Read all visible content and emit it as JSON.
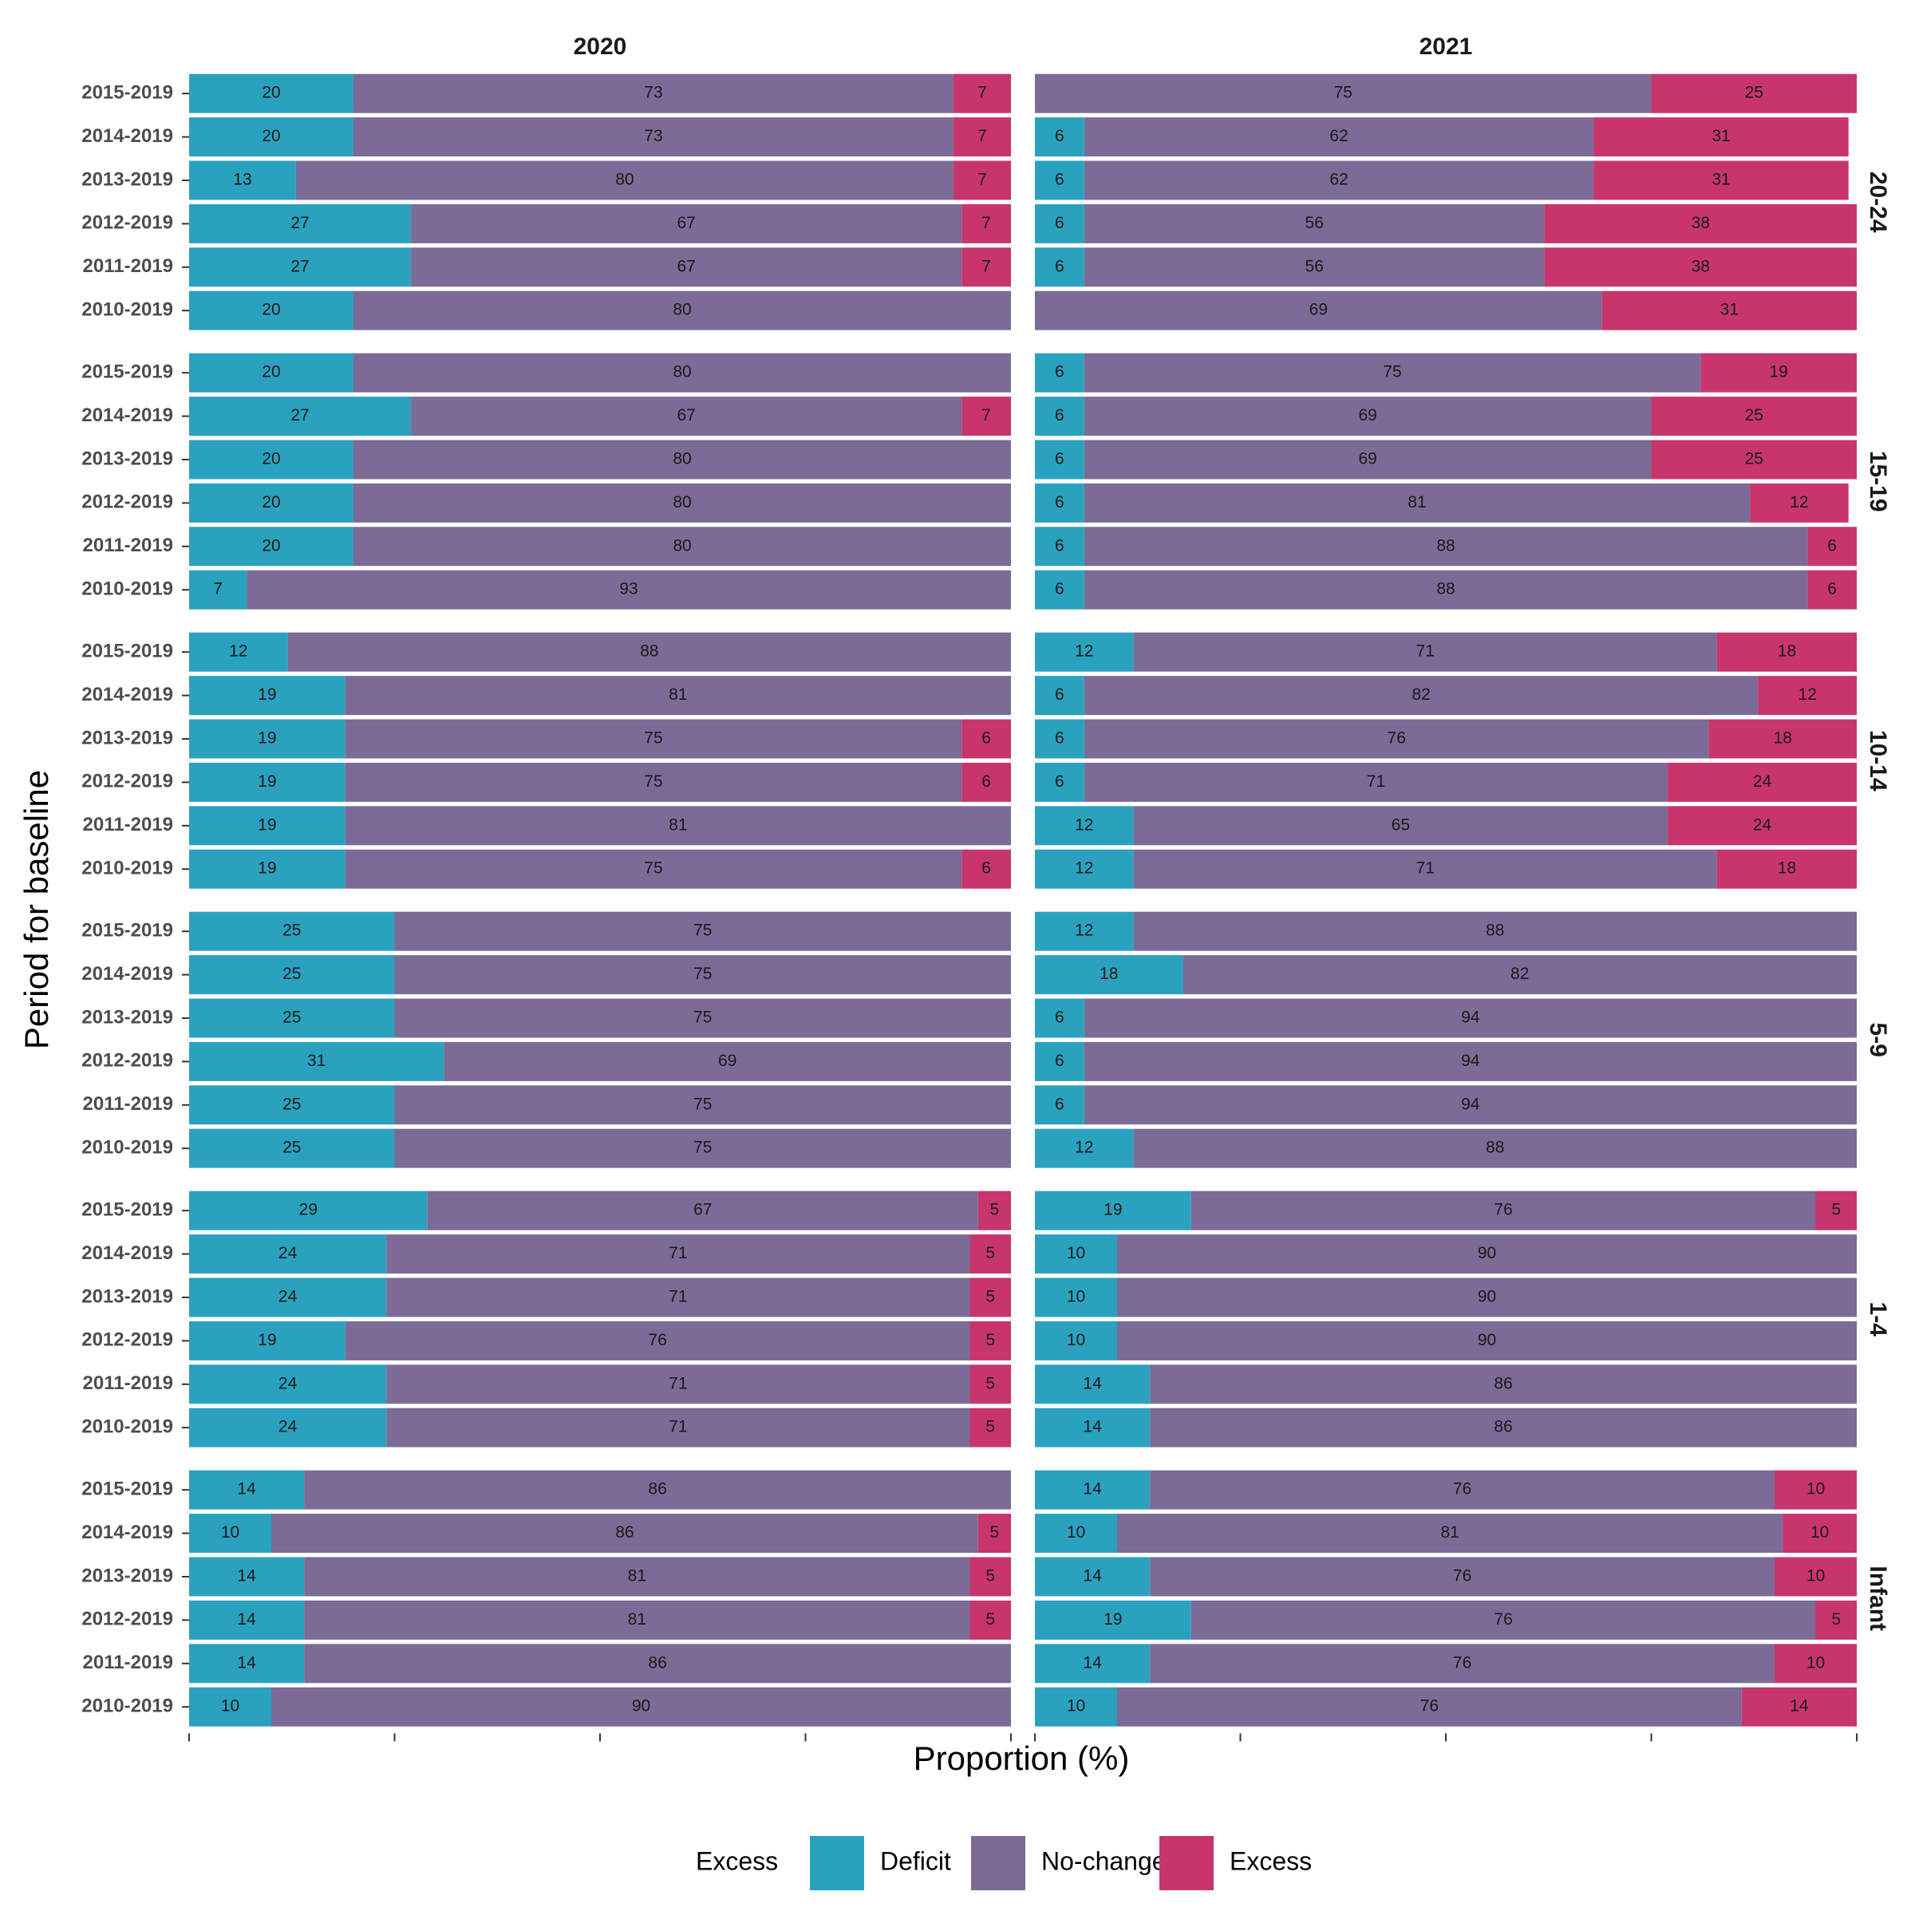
{
  "chart_data": {
    "type": "bar",
    "orientation": "horizontal",
    "stacked": true,
    "xlabel": "Proportion (%)",
    "ylabel": "Period for baseline",
    "xlim": [
      0,
      100
    ],
    "grid": false,
    "legend_placement": "bottom",
    "legend": {
      "title": "Excess",
      "items": [
        {
          "name": "Deficit",
          "color": "#2AA2BF"
        },
        {
          "name": "No-change",
          "color": "#7B6B96"
        },
        {
          "name": "Excess",
          "color": "#C8356C"
        }
      ]
    },
    "columns": [
      "2020",
      "2021"
    ],
    "rows": [
      "20-24",
      "15-19",
      "10-14",
      "5-9",
      "1-4",
      "Infant"
    ],
    "categories": [
      "2015-2019",
      "2014-2019",
      "2013-2019",
      "2012-2019",
      "2011-2019",
      "2010-2019"
    ],
    "series_order": [
      "Deficit",
      "No-change",
      "Excess"
    ],
    "panels": [
      {
        "row": "20-24",
        "column": "2020",
        "bars": [
          [
            20,
            73,
            7
          ],
          [
            20,
            73,
            7
          ],
          [
            13,
            80,
            7
          ],
          [
            27,
            67,
            7
          ],
          [
            27,
            67,
            7
          ],
          [
            20,
            80,
            0
          ]
        ]
      },
      {
        "row": "20-24",
        "column": "2021",
        "bars": [
          [
            0,
            75,
            25
          ],
          [
            6,
            62,
            31
          ],
          [
            6,
            62,
            31
          ],
          [
            6,
            56,
            38
          ],
          [
            6,
            56,
            38
          ],
          [
            0,
            69,
            31
          ]
        ]
      },
      {
        "row": "15-19",
        "column": "2020",
        "bars": [
          [
            20,
            80,
            0
          ],
          [
            27,
            67,
            7
          ],
          [
            20,
            80,
            0
          ],
          [
            20,
            80,
            0
          ],
          [
            20,
            80,
            0
          ],
          [
            7,
            93,
            0
          ]
        ]
      },
      {
        "row": "15-19",
        "column": "2021",
        "bars": [
          [
            6,
            75,
            19
          ],
          [
            6,
            69,
            25
          ],
          [
            6,
            69,
            25
          ],
          [
            6,
            81,
            12
          ],
          [
            6,
            88,
            6
          ],
          [
            6,
            88,
            6
          ]
        ]
      },
      {
        "row": "10-14",
        "column": "2020",
        "bars": [
          [
            12,
            88,
            0
          ],
          [
            19,
            81,
            0
          ],
          [
            19,
            75,
            6
          ],
          [
            19,
            75,
            6
          ],
          [
            19,
            81,
            0
          ],
          [
            19,
            75,
            6
          ]
        ]
      },
      {
        "row": "10-14",
        "column": "2021",
        "bars": [
          [
            12,
            71,
            18
          ],
          [
            6,
            82,
            12
          ],
          [
            6,
            76,
            18
          ],
          [
            6,
            71,
            24
          ],
          [
            12,
            65,
            24
          ],
          [
            12,
            71,
            18
          ]
        ]
      },
      {
        "row": "5-9",
        "column": "2020",
        "bars": [
          [
            25,
            75,
            0
          ],
          [
            25,
            75,
            0
          ],
          [
            25,
            75,
            0
          ],
          [
            31,
            69,
            0
          ],
          [
            25,
            75,
            0
          ],
          [
            25,
            75,
            0
          ]
        ]
      },
      {
        "row": "5-9",
        "column": "2021",
        "bars": [
          [
            12,
            88,
            0
          ],
          [
            18,
            82,
            0
          ],
          [
            6,
            94,
            0
          ],
          [
            6,
            94,
            0
          ],
          [
            6,
            94,
            0
          ],
          [
            12,
            88,
            0
          ]
        ]
      },
      {
        "row": "1-4",
        "column": "2020",
        "bars": [
          [
            29,
            67,
            5
          ],
          [
            24,
            71,
            5
          ],
          [
            24,
            71,
            5
          ],
          [
            19,
            76,
            5
          ],
          [
            24,
            71,
            5
          ],
          [
            24,
            71,
            5
          ]
        ]
      },
      {
        "row": "1-4",
        "column": "2021",
        "bars": [
          [
            19,
            76,
            5
          ],
          [
            10,
            90,
            0
          ],
          [
            10,
            90,
            0
          ],
          [
            10,
            90,
            0
          ],
          [
            14,
            86,
            0
          ],
          [
            14,
            86,
            0
          ]
        ]
      },
      {
        "row": "Infant",
        "column": "2020",
        "bars": [
          [
            14,
            86,
            0
          ],
          [
            10,
            86,
            5
          ],
          [
            14,
            81,
            5
          ],
          [
            14,
            81,
            5
          ],
          [
            14,
            86,
            0
          ],
          [
            10,
            90,
            0
          ]
        ]
      },
      {
        "row": "Infant",
        "column": "2021",
        "bars": [
          [
            14,
            76,
            10
          ],
          [
            10,
            81,
            10
          ],
          [
            14,
            76,
            10
          ],
          [
            19,
            76,
            5
          ],
          [
            14,
            76,
            10
          ],
          [
            10,
            76,
            14
          ]
        ]
      }
    ]
  }
}
